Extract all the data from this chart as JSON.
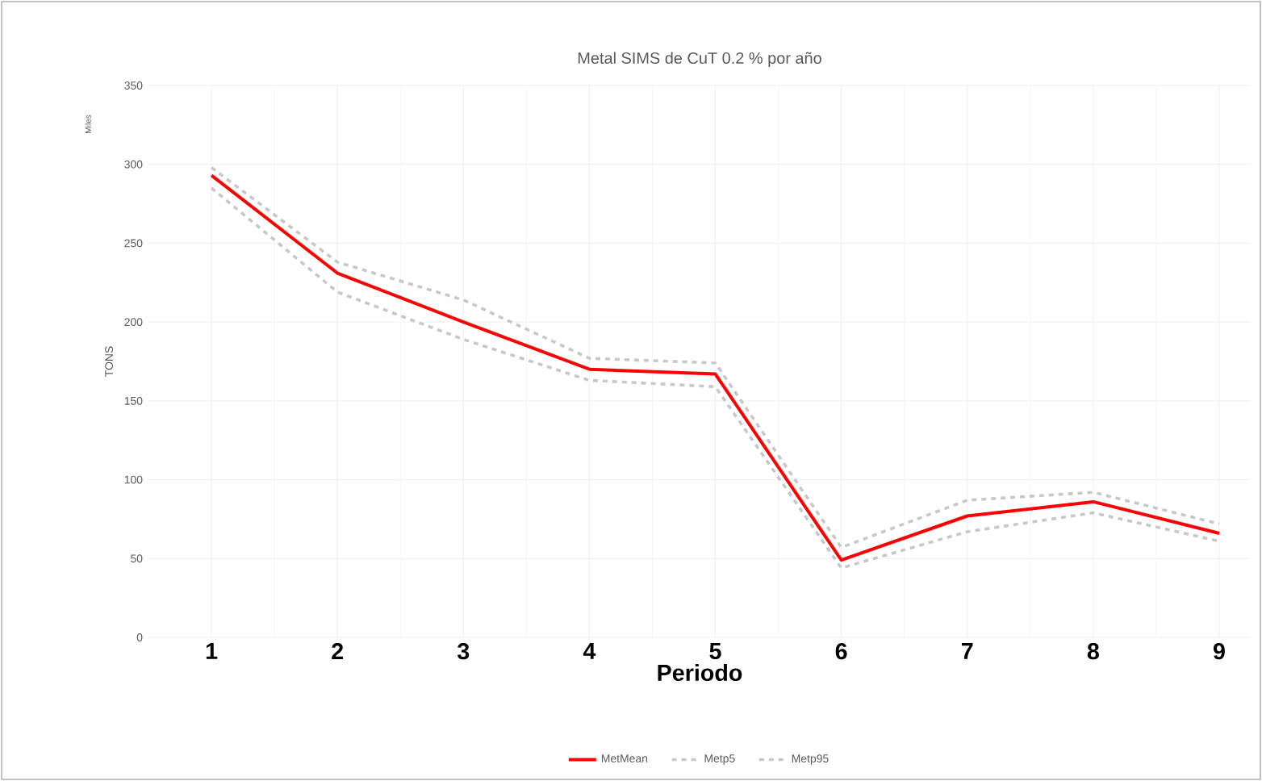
{
  "chart_data": {
    "type": "line",
    "title": "Metal SIMS de CuT 0.2 % por año",
    "xlabel": "Periodo",
    "ylabel": "TONS",
    "annotations": [
      "Miles"
    ],
    "categories": [
      "1",
      "2",
      "3",
      "4",
      "5",
      "6",
      "7",
      "8",
      "9"
    ],
    "series": [
      {
        "name": "MetMean",
        "color": "#ff0000",
        "line_style": "solid",
        "values": [
          293,
          231,
          200,
          170,
          167,
          49,
          77,
          86,
          66
        ]
      },
      {
        "name": "Metp5",
        "color": "#c8c8c8",
        "line_style": "dashed",
        "values": [
          285,
          219,
          189,
          163,
          159,
          44,
          67,
          79,
          61
        ]
      },
      {
        "name": "Metp95",
        "color": "#c8c8c8",
        "line_style": "dashed",
        "values": [
          298,
          238,
          214,
          177,
          174,
          57,
          87,
          92,
          72
        ]
      }
    ],
    "ylim": [
      0,
      350
    ],
    "yticks": [
      0,
      50,
      100,
      150,
      200,
      250,
      300,
      350
    ],
    "grid": true,
    "legend": "bottom",
    "marker": "none"
  }
}
